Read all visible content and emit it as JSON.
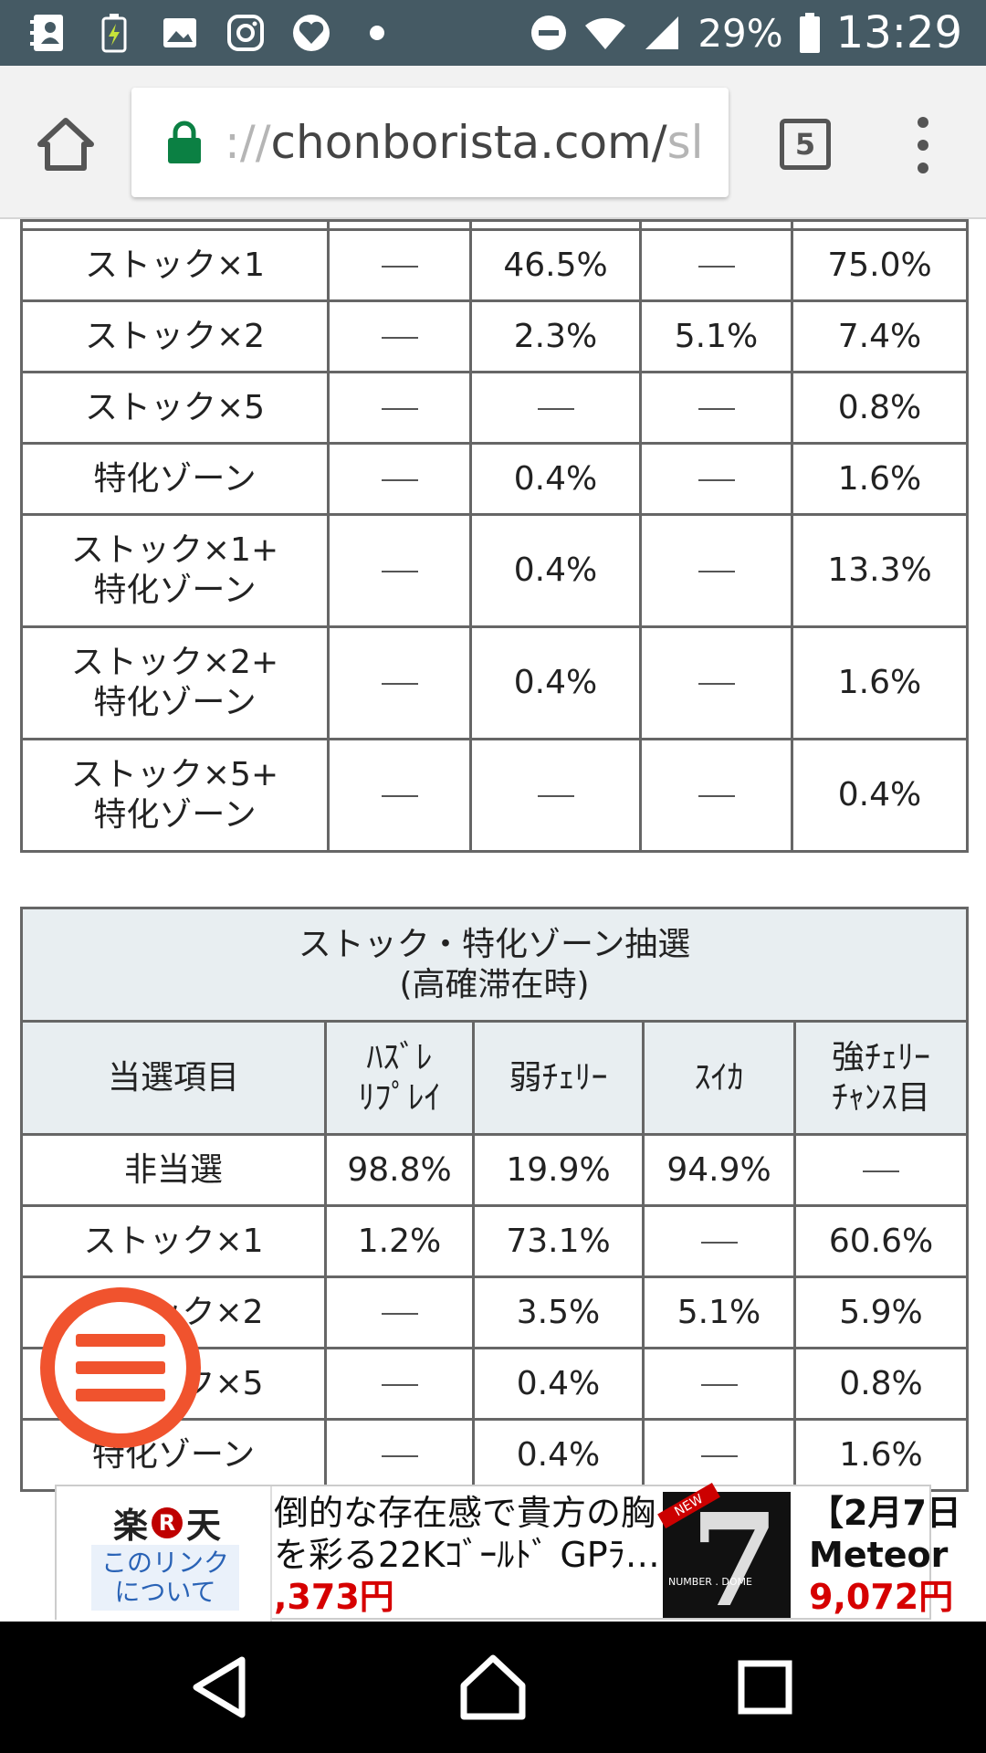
{
  "status_bar": {
    "icons": [
      "contacts-icon",
      "battery-saver-icon",
      "gallery-icon",
      "instagram-icon",
      "heart-app-icon",
      "dot-icon"
    ],
    "battery_percent": "29%",
    "time": "13:29"
  },
  "browser": {
    "url_prefix": "://",
    "url_main": "chonborista.com/",
    "url_faded": "sl",
    "tab_count": "5"
  },
  "table1": {
    "rows": [
      {
        "label": "ストック×1",
        "cells": [
          "—",
          "46.5%",
          "—",
          "75.0%"
        ]
      },
      {
        "label": "ストック×2",
        "cells": [
          "—",
          "2.3%",
          "5.1%",
          "7.4%"
        ]
      },
      {
        "label": "ストック×5",
        "cells": [
          "—",
          "—",
          "—",
          "0.8%"
        ]
      },
      {
        "label": "特化ゾーン",
        "cells": [
          "—",
          "0.4%",
          "—",
          "1.6%"
        ]
      },
      {
        "label_line1": "ストック×1+",
        "label_line2": "特化ゾーン",
        "cells": [
          "—",
          "0.4%",
          "—",
          "13.3%"
        ]
      },
      {
        "label_line1": "ストック×2+",
        "label_line2": "特化ゾーン",
        "cells": [
          "—",
          "0.4%",
          "—",
          "1.6%"
        ]
      },
      {
        "label_line1": "ストック×5+",
        "label_line2": "特化ゾーン",
        "cells": [
          "—",
          "—",
          "—",
          "0.4%"
        ]
      }
    ]
  },
  "table2": {
    "title_line1": "ストック・特化ゾーン抽選",
    "title_line2": "(高確滞在時)",
    "headers": {
      "col0": "当選項目",
      "col1_line1": "ﾊｽﾞﾚ",
      "col1_line2": "ﾘﾌﾟﾚｲ",
      "col2": "弱ﾁｪﾘｰ",
      "col3": "ｽｲｶ",
      "col4_line1": "強ﾁｪﾘｰ",
      "col4_line2": "ﾁｬﾝｽ目"
    },
    "rows": [
      {
        "label": "非当選",
        "cells": [
          "98.8%",
          "19.9%",
          "94.9%",
          "—"
        ]
      },
      {
        "label": "ストック×1",
        "cells": [
          "1.2%",
          "73.1%",
          "—",
          "60.6%"
        ]
      },
      {
        "label": "ストック×2",
        "cells": [
          "—",
          "3.5%",
          "5.1%",
          "5.9%"
        ]
      },
      {
        "label": "ストック×5",
        "cells": [
          "—",
          "0.4%",
          "—",
          "0.8%"
        ]
      },
      {
        "label": "特化ゾーン",
        "cells": [
          "—",
          "0.4%",
          "—",
          "1.6%"
        ]
      }
    ]
  },
  "ad": {
    "brand_left": "楽",
    "brand_mark": "R",
    "brand_right": "天",
    "link_line1": "このリンク",
    "link_line2": "について",
    "line1": "倒的な存在感で貴方の胸",
    "line2": "を彩る22Kｺﾞｰﾙﾄﾞ GPﾗ…",
    "price1": ",373円",
    "image_tag": "NEW",
    "image_caption": "NUMBER . DOME",
    "right_line1": "【2月7日",
    "right_line2": "Meteor",
    "price2": "9,072円"
  },
  "colors": {
    "status_bar": "#455a64",
    "accent_orange": "#f0532e",
    "lock_green": "#0b8043",
    "header_bg": "#e8eef1",
    "price_red": "#d60000"
  }
}
